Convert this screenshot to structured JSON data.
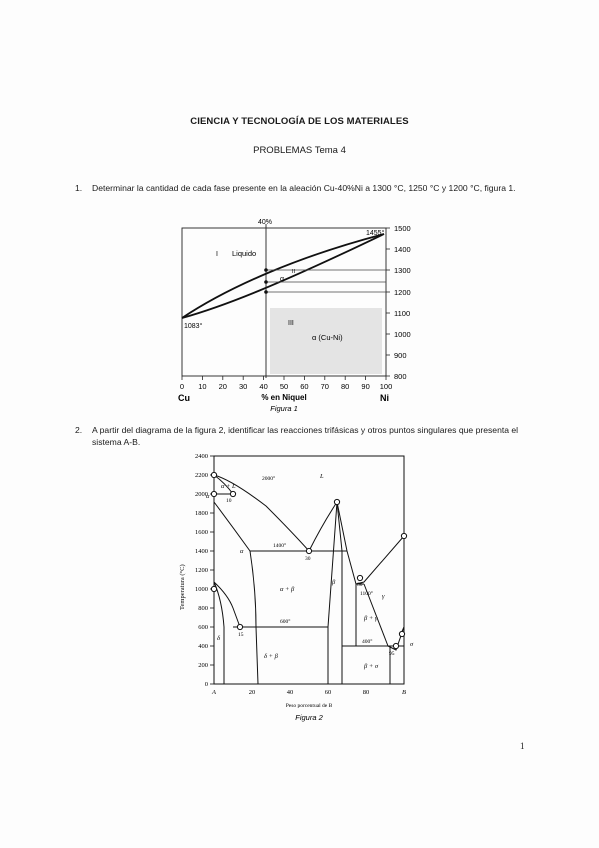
{
  "document": {
    "title": "CIENCIA Y TECNOLOGÍA DE LOS MATERIALES",
    "subtitle": "PROBLEMAS Tema 4",
    "page_number": "1"
  },
  "problems": [
    {
      "number": "1.",
      "text": "Determinar la cantidad de cada fase presente en la aleación Cu-40%Ni a 1300 °C, 1250 °C y 1200 °C, figura 1."
    },
    {
      "number": "2.",
      "text": "A partir del diagrama de la figura 2, identificar las reacciones trifásicas y otros puntos singulares que presenta el sistema A-B."
    }
  ],
  "figure1": {
    "caption": "Figura 1",
    "top_label": "40%",
    "xlabel": "% en Niquel",
    "left_element": "Cu",
    "right_element": "Ni",
    "x_ticks": [
      "0",
      "10",
      "20",
      "30",
      "40",
      "50",
      "60",
      "70",
      "80",
      "90",
      "100"
    ],
    "y_ticks": [
      "800",
      "900",
      "1000",
      "1100",
      "1200",
      "1300",
      "1400",
      "1500"
    ],
    "region_labels": {
      "I": "I",
      "liquid": "Liquido",
      "II": "II",
      "alpha": "α",
      "III": "III",
      "solid": "α (Cu-Ni)"
    },
    "melting_cu": "1083°",
    "melting_ni": "1455°"
  },
  "figure2": {
    "caption": "Figura 2",
    "ylabel": "Temperatura (°C)",
    "xlabel": "Peso porcentual de B",
    "left_end": "A",
    "right_end": "B",
    "x_ticks": [
      "20",
      "40",
      "60",
      "80"
    ],
    "y_ticks": [
      "0",
      "200",
      "400",
      "600",
      "800",
      "1000",
      "1200",
      "1400",
      "1600",
      "1800",
      "2000",
      "2200",
      "2400"
    ],
    "labels": {
      "L": "L",
      "alpha_L": "α + L",
      "alpha_top": "α",
      "alpha": "α",
      "alpha_beta": "α + β",
      "beta": "β",
      "gamma": "γ",
      "beta_gamma": "β + γ",
      "delta_left": "δ",
      "delta_beta": "δ + β",
      "beta_sigma": "β + σ",
      "sigma": "σ",
      "t2000": "2000°",
      "t1400": "1400°",
      "t600": "600°",
      "t1100": "1100°",
      "t400": "400°",
      "c10": "10",
      "c30": "30",
      "c15": "15",
      "c80": "80",
      "c95": "95"
    }
  }
}
